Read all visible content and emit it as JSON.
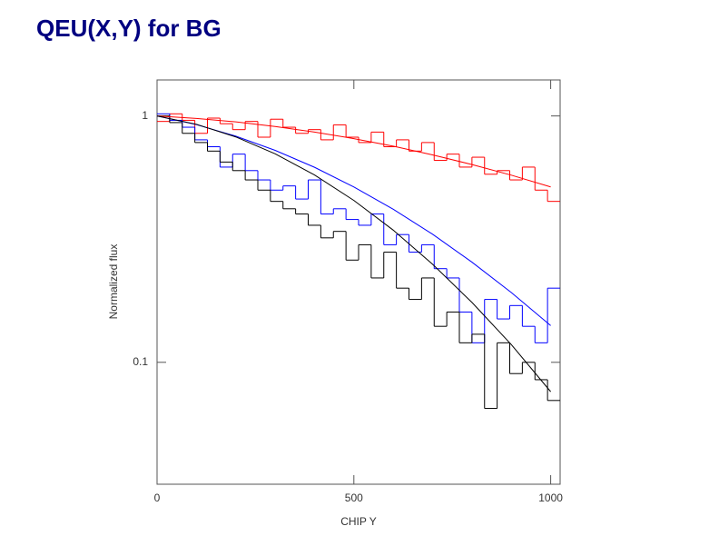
{
  "chart_data": {
    "type": "histogram",
    "title": "QEU(X,Y) for BG",
    "x_label": "CHIP Y",
    "y_label": "Normalized flux",
    "log_y": true,
    "xlim": [
      0,
      1024
    ],
    "ylim": [
      0.032,
      1.4
    ],
    "xticks": [
      0,
      500,
      1000
    ],
    "yticks": [
      0.1,
      1
    ],
    "bins": [
      0,
      32,
      64,
      96,
      128,
      160,
      192,
      224,
      256,
      288,
      320,
      352,
      384,
      416,
      448,
      480,
      512,
      544,
      576,
      608,
      640,
      672,
      704,
      736,
      768,
      800,
      832,
      864,
      896,
      928,
      960,
      992,
      1024
    ],
    "series": [
      {
        "color": "#ff0000",
        "values": [
          0.95,
          1.02,
          0.96,
          0.85,
          0.98,
          0.93,
          0.88,
          0.95,
          0.82,
          0.97,
          0.9,
          0.85,
          0.88,
          0.8,
          0.92,
          0.82,
          0.78,
          0.86,
          0.75,
          0.8,
          0.72,
          0.78,
          0.66,
          0.7,
          0.62,
          0.68,
          0.58,
          0.6,
          0.55,
          0.62,
          0.5,
          0.45
        ]
      },
      {
        "color": "#0000ff",
        "values": [
          1.02,
          0.96,
          0.9,
          0.8,
          0.75,
          0.62,
          0.7,
          0.6,
          0.55,
          0.5,
          0.52,
          0.46,
          0.55,
          0.4,
          0.42,
          0.38,
          0.36,
          0.4,
          0.3,
          0.33,
          0.28,
          0.3,
          0.24,
          0.22,
          0.16,
          0.12,
          0.18,
          0.15,
          0.17,
          0.14,
          0.12,
          0.2
        ]
      },
      {
        "color": "#000000",
        "values": [
          1.0,
          0.94,
          0.85,
          0.78,
          0.72,
          0.65,
          0.6,
          0.55,
          0.5,
          0.45,
          0.42,
          0.4,
          0.36,
          0.32,
          0.34,
          0.26,
          0.3,
          0.22,
          0.28,
          0.2,
          0.18,
          0.22,
          0.14,
          0.16,
          0.12,
          0.13,
          0.065,
          0.12,
          0.09,
          0.1,
          0.085,
          0.07
        ]
      }
    ],
    "fits": {
      "x": [
        0,
        100,
        200,
        300,
        400,
        500,
        600,
        700,
        800,
        900,
        1000
      ],
      "series": [
        {
          "color": "#ff0000",
          "values": [
            1,
            0.977,
            0.946,
            0.906,
            0.86,
            0.809,
            0.754,
            0.695,
            0.635,
            0.575,
            0.515
          ]
        },
        {
          "color": "#0000ff",
          "values": [
            1,
            0.922,
            0.828,
            0.725,
            0.619,
            0.515,
            0.418,
            0.331,
            0.255,
            0.192,
            0.141
          ]
        },
        {
          "color": "#000000",
          "values": [
            1,
            0.925,
            0.822,
            0.702,
            0.576,
            0.454,
            0.344,
            0.25,
            0.175,
            0.118,
            0.076
          ]
        }
      ]
    }
  }
}
